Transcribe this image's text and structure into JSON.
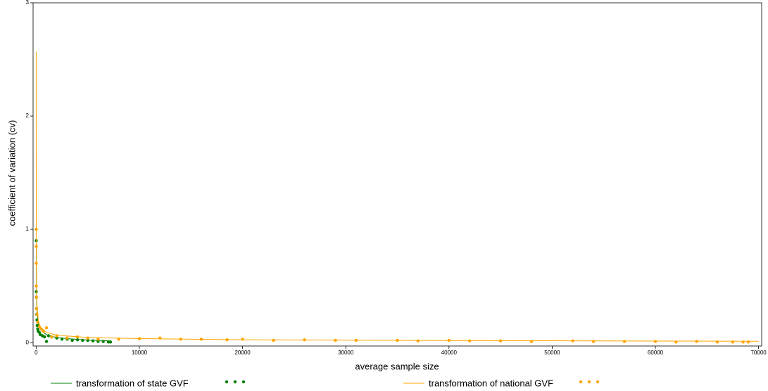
{
  "chart_data": {
    "type": "scatter",
    "xlabel": "average sample size",
    "ylabel": "coefficient of variation (cv)",
    "xlim": [
      -300,
      70300
    ],
    "ylim": [
      -0.03,
      3.0
    ],
    "xticks": [
      0,
      10000,
      20000,
      30000,
      40000,
      50000,
      60000,
      70000
    ],
    "yticks": [
      0,
      1,
      2,
      3
    ],
    "series": [
      {
        "name": "transformation of state GVF",
        "color": "#008000",
        "style": "line",
        "x": [
          10,
          30,
          60,
          100,
          200,
          400,
          700,
          1000,
          1500,
          2000,
          3000,
          4000,
          5000,
          6000,
          7200
        ],
        "values": [
          0.9,
          0.5,
          0.33,
          0.25,
          0.17,
          0.12,
          0.09,
          0.07,
          0.055,
          0.045,
          0.035,
          0.028,
          0.022,
          0.018,
          0.015
        ]
      },
      {
        "color": "#008000",
        "style": "points",
        "x": [
          5,
          10,
          20,
          30,
          50,
          80,
          100,
          150,
          200,
          300,
          400,
          600,
          800,
          1000,
          1200,
          1500,
          2000,
          2500,
          3000,
          3500,
          4000,
          4500,
          5000,
          5500,
          6000,
          6500,
          7000,
          7200
        ],
        "values": [
          0.9,
          0.45,
          0.4,
          0.3,
          0.25,
          0.2,
          0.15,
          0.12,
          0.1,
          0.09,
          0.07,
          0.06,
          0.05,
          0.01,
          0.06,
          0.05,
          0.04,
          0.03,
          0.03,
          0.02,
          0.025,
          0.02,
          0.02,
          0.015,
          0.01,
          0.01,
          0.005,
          0.005
        ]
      },
      {
        "name": "transformation of national GVF",
        "color": "#ffa500",
        "style": "line",
        "x": [
          1,
          3,
          10,
          30,
          60,
          100,
          200,
          400,
          1000,
          2000,
          5000,
          10000,
          20000,
          40000,
          70000
        ],
        "values": [
          2.57,
          1.8,
          1.0,
          0.55,
          0.38,
          0.3,
          0.2,
          0.14,
          0.09,
          0.065,
          0.045,
          0.035,
          0.025,
          0.018,
          0.012
        ]
      },
      {
        "color": "#ffa500",
        "style": "points",
        "x": [
          1,
          3,
          5,
          10,
          20,
          40,
          80,
          150,
          300,
          500,
          700,
          1000,
          1500,
          2000,
          3000,
          4000,
          5000,
          6000,
          8000,
          10000,
          12000,
          14000,
          16000,
          18500,
          20000,
          23000,
          26000,
          29000,
          31000,
          35000,
          37000,
          40000,
          42000,
          45000,
          48000,
          52000,
          54000,
          57000,
          60000,
          62000,
          64000,
          66000,
          67500,
          68500,
          69000
        ],
        "values": [
          1.0,
          0.85,
          0.7,
          0.5,
          0.4,
          0.3,
          0.25,
          0.18,
          0.14,
          0.12,
          0.1,
          0.13,
          0.05,
          0.06,
          0.04,
          0.05,
          0.04,
          0.03,
          0.03,
          0.035,
          0.04,
          0.03,
          0.03,
          0.025,
          0.03,
          0.02,
          0.025,
          0.02,
          0.02,
          0.02,
          0.015,
          0.02,
          0.015,
          0.015,
          0.01,
          0.015,
          0.01,
          0.01,
          0.01,
          0.005,
          0.01,
          0.005,
          0.005,
          0.005,
          0.005
        ]
      }
    ]
  }
}
